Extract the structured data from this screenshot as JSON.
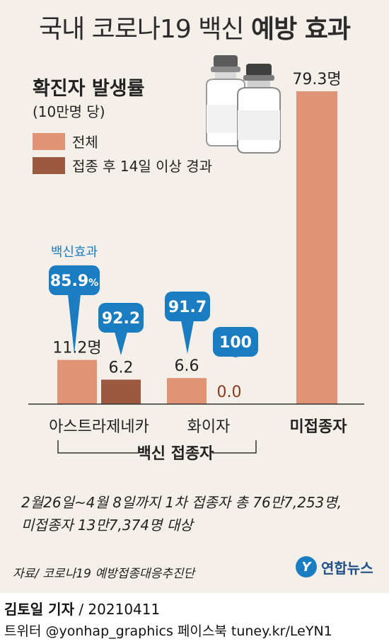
{
  "title": {
    "normal": "국내 코로나19 백신",
    "bold": "예방 효과"
  },
  "subtitle": "확진자 발생률",
  "subtitle_unit": "(10만명 당)",
  "legend": [
    {
      "label": "전체",
      "color": "#e19376"
    },
    {
      "label": "접종 후 14일 이상 경과",
      "color": "#9b5a40"
    }
  ],
  "colors": {
    "accent_blue": "#1a7cc1",
    "zero_value": "#8a3a1a",
    "panel": "#f4f0e9"
  },
  "icons": [
    "vaccine-vial-icon"
  ],
  "chart_data": {
    "type": "bar",
    "ylim": [
      0,
      80
    ],
    "categories": [
      "아스트라제네카",
      "화이자",
      "미접종자"
    ],
    "series": [
      {
        "name": "전체",
        "values": [
          11.2,
          6.6,
          79.3
        ]
      },
      {
        "name": "접종 후 14일 이상 경과",
        "values": [
          6.2,
          0.0,
          null
        ]
      }
    ],
    "data_labels": [
      {
        "category": "아스트라제네카",
        "series": "전체",
        "text": "11.2명"
      },
      {
        "category": "아스트라제네카",
        "series": "접종 후 14일 이상 경과",
        "text": "6.2"
      },
      {
        "category": "화이자",
        "series": "전체",
        "text": "6.6"
      },
      {
        "category": "화이자",
        "series": "접종 후 14일 이상 경과",
        "text": "0.0"
      },
      {
        "category": "미접종자",
        "series": "전체",
        "text": "79.3명"
      }
    ],
    "efficacy_label": "백신효과",
    "efficacy_badges": [
      {
        "category": "아스트라제네카",
        "series": "전체",
        "value": "85.9",
        "unit": "%"
      },
      {
        "category": "아스트라제네카",
        "series": "접종 후 14일 이상 경과",
        "value": "92.2",
        "unit": ""
      },
      {
        "category": "화이자",
        "series": "전체",
        "value": "91.7",
        "unit": ""
      },
      {
        "category": "화이자",
        "series": "접종 후 14일 이상 경과",
        "value": "100",
        "unit": ""
      }
    ],
    "group_label": "백신 접종자"
  },
  "note_lines": [
    "2월26일~4월 8일까지 1차 접종자 총 76만7,253명,",
    "미접종자 13만7,374명 대상"
  ],
  "source": "자료/ 코로나19 예방접종대응추진단",
  "logo": {
    "mark": "Y",
    "text": "연합뉴스"
  },
  "byline": {
    "reporter": "김토일 기자",
    "separator": " / ",
    "date": "20210411"
  },
  "social": "트위터 @yonhap_graphics  페이스북 tuney.kr/LeYN1"
}
